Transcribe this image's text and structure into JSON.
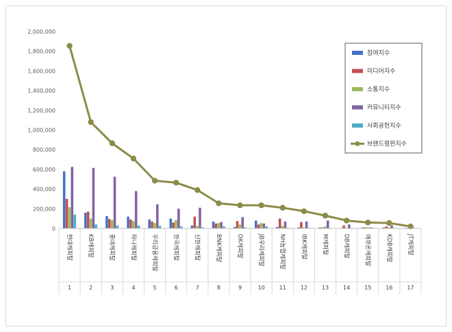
{
  "chart_data": {
    "type": "bar",
    "title": "",
    "xlabel": "",
    "ylabel": "",
    "ylim": [
      0,
      2000000
    ],
    "yticks": [
      "0",
      "200,000",
      "400,000",
      "600,000",
      "800,000",
      "1,000,000",
      "1,200,000",
      "1,400,000",
      "1,600,000",
      "1,800,000",
      "2,000,000"
    ],
    "ytick_values": [
      0,
      200000,
      400000,
      600000,
      800000,
      1000000,
      1200000,
      1400000,
      1600000,
      1800000,
      2000000
    ],
    "grid": false,
    "legend_position": "right",
    "index_labels": [
      "1",
      "2",
      "3",
      "4",
      "5",
      "6",
      "7",
      "8",
      "9",
      "10",
      "11",
      "12",
      "13",
      "14",
      "15",
      "16",
      "17"
    ],
    "categories": [
      "현대캐피탈",
      "KB캐피탈",
      "롯데캐피탈",
      "하나캐피탈",
      "우리금융캐피탈",
      "한국캐피탈",
      "신한캐피탈",
      "BNK캐피탈",
      "OK캐피탈",
      "JB우리캐피탈",
      "NH농협캐피탈",
      "IBK캐피탈",
      "M캐피탈",
      "DB캐피탈",
      "애큐온캐피탈",
      "KDB캐피탈",
      "JT캐피탈"
    ],
    "series": [
      {
        "name": "참여지수",
        "color": "#4472C4",
        "values": [
          580000,
          160000,
          125000,
          120000,
          90000,
          100000,
          30000,
          70000,
          15000,
          80000,
          15000,
          10000,
          10000,
          5000,
          10000,
          10000,
          5000
        ]
      },
      {
        "name": "미디어지수",
        "color": "#C0504D",
        "values": [
          300000,
          170000,
          95000,
          90000,
          70000,
          60000,
          120000,
          50000,
          75000,
          40000,
          100000,
          65000,
          10000,
          30000,
          10000,
          20000,
          5000
        ]
      },
      {
        "name": "소통지수",
        "color": "#9BBB59",
        "values": [
          215000,
          100000,
          85000,
          75000,
          55000,
          85000,
          25000,
          55000,
          40000,
          55000,
          25000,
          10000,
          20000,
          5000,
          10000,
          10000,
          3000
        ]
      },
      {
        "name": "커뮤니티지수",
        "color": "#8064A2",
        "values": [
          625000,
          615000,
          525000,
          380000,
          245000,
          200000,
          210000,
          65000,
          115000,
          50000,
          70000,
          70000,
          80000,
          40000,
          10000,
          30000,
          10000
        ]
      },
      {
        "name": "사회공헌지수",
        "color": "#4BACC6",
        "values": [
          140000,
          40000,
          30000,
          30000,
          25000,
          20000,
          10000,
          20000,
          10000,
          20000,
          5000,
          5000,
          5000,
          5000,
          5000,
          5000,
          2000
        ]
      }
    ],
    "line": {
      "name": "브랜드평판지수",
      "color": "#8B8B4A",
      "values": [
        1855000,
        1080000,
        865000,
        710000,
        485000,
        465000,
        390000,
        255000,
        235000,
        235000,
        210000,
        175000,
        130000,
        80000,
        60000,
        55000,
        20000
      ]
    }
  }
}
